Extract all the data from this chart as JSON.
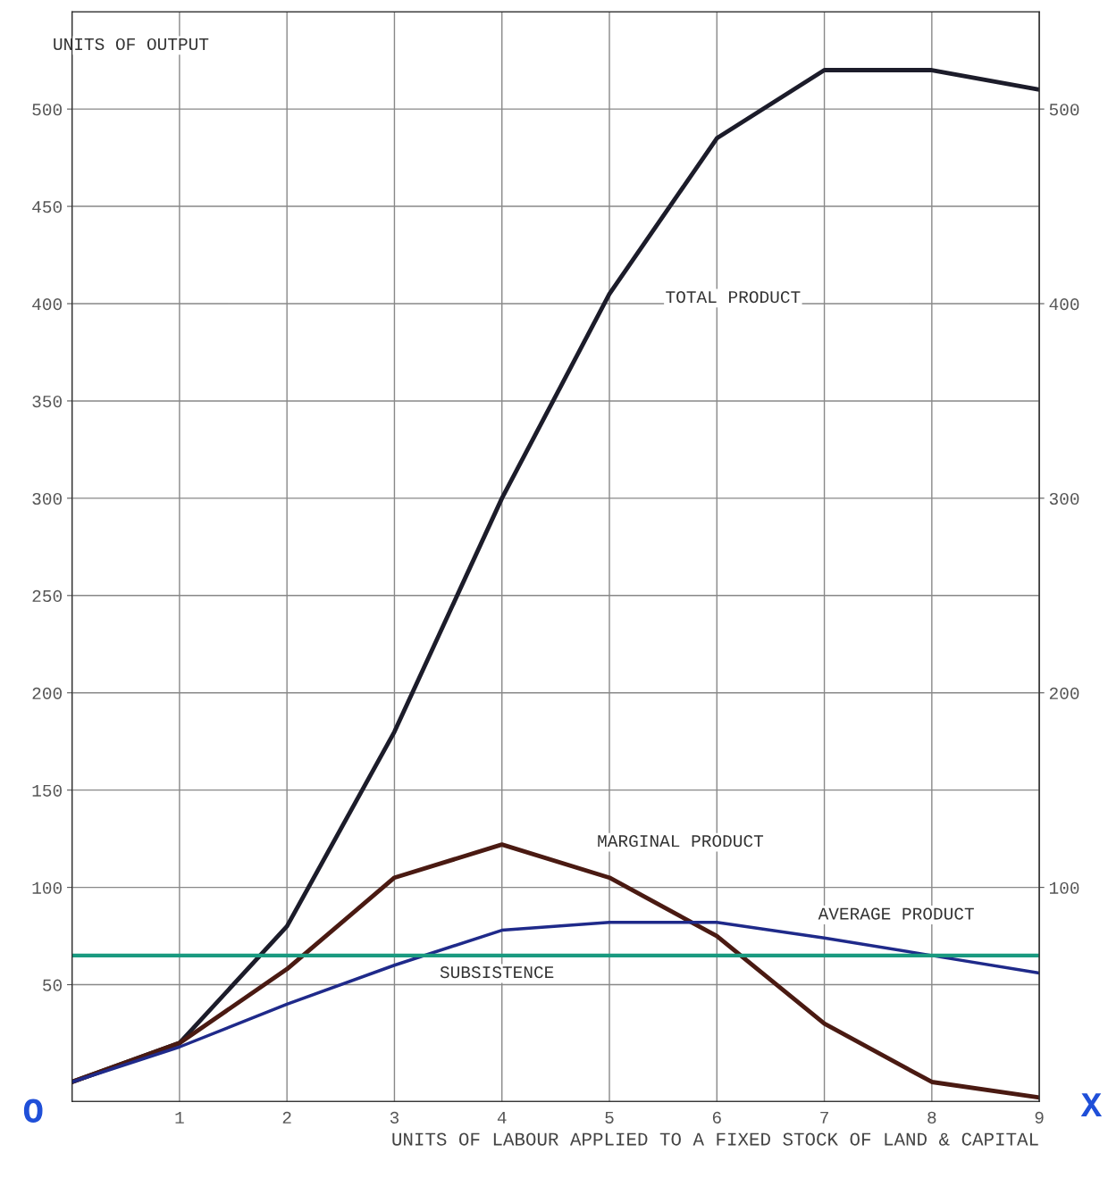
{
  "chart_data": {
    "type": "line",
    "xlabel": "UNITS OF LABOUR APPLIED TO A FIXED STOCK OF LAND & CAPITAL",
    "ylabel": "UNITS OF OUTPUT",
    "x": [
      0,
      1,
      2,
      3,
      4,
      5,
      6,
      7,
      8,
      9
    ],
    "series": [
      {
        "name": "TOTAL PRODUCT",
        "color": "#1c1c2a",
        "values": [
          0,
          20,
          80,
          180,
          300,
          405,
          485,
          520,
          520,
          510
        ]
      },
      {
        "name": "MARGINAL PRODUCT",
        "color": "#4a1a12",
        "values": [
          0,
          20,
          58,
          105,
          122,
          105,
          75,
          30,
          0,
          -8
        ]
      },
      {
        "name": "AVERAGE PRODUCT",
        "color": "#1f2a8a",
        "values": [
          0,
          18,
          40,
          60,
          78,
          82,
          82,
          74,
          65,
          56
        ]
      }
    ],
    "ref_lines": [
      {
        "axis": "y",
        "value": 65,
        "label": "SUBSISTENCE",
        "color": "#1a9a80"
      }
    ],
    "annotations": [
      "O",
      "X"
    ],
    "xlim": [
      0,
      9
    ],
    "xticks": [
      {
        "value": 0,
        "label": null
      },
      1,
      2,
      3,
      4,
      5,
      6,
      7,
      8,
      9
    ],
    "ylim": [
      -10,
      550
    ],
    "yticks": [
      50,
      100,
      150,
      200,
      250,
      300,
      350,
      400,
      450,
      500
    ],
    "y2lim": [
      -10,
      550
    ],
    "y2ticks": [
      100,
      200,
      300,
      400,
      500
    ],
    "grid": true,
    "marker": "none",
    "line_style": "solid"
  }
}
